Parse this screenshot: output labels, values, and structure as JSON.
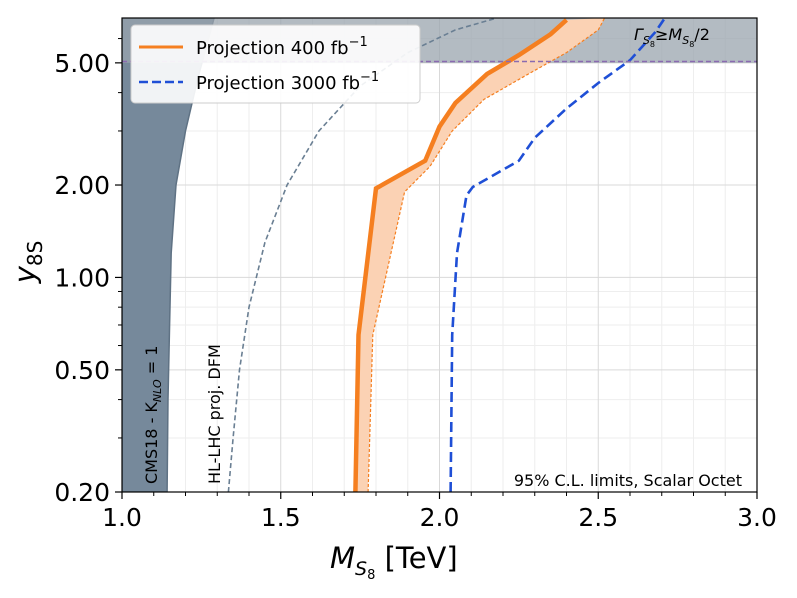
{
  "chart_data": {
    "type": "line",
    "x": {
      "label": "M",
      "label_sub": "S",
      "label_subsub": "8",
      "label_unit": " [TeV]",
      "lim": [
        1.0,
        3.0
      ],
      "ticks": [
        "1.0",
        "1.5",
        "2.0",
        "2.5",
        "3.0"
      ],
      "tick_values": [
        1.0,
        1.5,
        2.0,
        2.5,
        3.0
      ],
      "minor_ticks": [
        1.1,
        1.2,
        1.3,
        1.4,
        1.6,
        1.7,
        1.8,
        1.9,
        2.1,
        2.2,
        2.3,
        2.4,
        2.6,
        2.7,
        2.8,
        2.9
      ]
    },
    "y": {
      "label": "y",
      "label_sub": "8S",
      "scale": "log",
      "lim": [
        0.2,
        7.0
      ],
      "ticks": [
        "0.20",
        "0.50",
        "1.00",
        "2.00",
        "5.00"
      ],
      "tick_values": [
        0.2,
        0.5,
        1.0,
        2.0,
        5.0
      ],
      "minor_ticks": [
        0.3,
        0.4,
        0.6,
        0.7,
        0.8,
        0.9,
        3,
        4,
        6
      ]
    },
    "grid": true,
    "legend": {
      "placement": "top-left",
      "entries": [
        {
          "label_main": "Projection 400 fb",
          "label_sup": "−1",
          "color": "#f57f20",
          "style": "solid"
        },
        {
          "label_main": "Projection 3000 fb",
          "label_sup": "−1",
          "color": "#1f4fd6",
          "style": "dashed"
        }
      ]
    },
    "regions": [
      {
        "name": "CMS18 excluded",
        "fill": "#76899b",
        "boundary": [
          [
            1.0,
            7.0
          ],
          [
            1.29,
            7.0
          ],
          [
            1.24,
            4.5
          ],
          [
            1.2,
            3.0
          ],
          [
            1.17,
            2.0
          ],
          [
            1.155,
            1.2
          ],
          [
            1.15,
            0.7
          ],
          [
            1.145,
            0.4
          ],
          [
            1.142,
            0.2
          ]
        ]
      },
      {
        "name": "width band",
        "fill": "#9aa4ad",
        "y_from": 5.0,
        "y_to": 7.0
      }
    ],
    "series": [
      {
        "name": "Projection 400 fb−1",
        "color": "#f57f20",
        "style": "solid",
        "band_color": "#fbd2b4",
        "lower": [
          [
            1.735,
            0.2
          ],
          [
            1.745,
            0.65
          ],
          [
            1.8,
            1.95
          ],
          [
            1.955,
            2.4
          ],
          [
            2.0,
            3.1
          ],
          [
            2.05,
            3.7
          ],
          [
            2.15,
            4.6
          ],
          [
            2.25,
            5.3
          ],
          [
            2.35,
            6.2
          ],
          [
            2.4,
            6.9
          ]
        ],
        "upper": [
          [
            1.775,
            0.2
          ],
          [
            1.79,
            0.65
          ],
          [
            1.89,
            1.9
          ],
          [
            1.97,
            2.3
          ],
          [
            2.04,
            3.0
          ],
          [
            2.14,
            3.8
          ],
          [
            2.28,
            4.6
          ],
          [
            2.4,
            5.4
          ],
          [
            2.5,
            6.4
          ],
          [
            2.52,
            7.0
          ]
        ]
      },
      {
        "name": "Projection 3000 fb−1",
        "color": "#1f4fd6",
        "style": "dashed",
        "points": [
          [
            2.035,
            0.2
          ],
          [
            2.04,
            0.65
          ],
          [
            2.055,
            1.2
          ],
          [
            2.085,
            1.85
          ],
          [
            2.105,
            1.97
          ],
          [
            2.25,
            2.4
          ],
          [
            2.3,
            2.85
          ],
          [
            2.4,
            3.55
          ],
          [
            2.5,
            4.3
          ],
          [
            2.6,
            5.1
          ],
          [
            2.68,
            6.3
          ],
          [
            2.71,
            7.0
          ]
        ]
      },
      {
        "name": "HL-LHC proj. DFM",
        "color": "#6a7f93",
        "style": "dashed",
        "points": [
          [
            1.335,
            0.2
          ],
          [
            1.35,
            0.3
          ],
          [
            1.37,
            0.5
          ],
          [
            1.4,
            0.8
          ],
          [
            1.45,
            1.3
          ],
          [
            1.52,
            2.0
          ],
          [
            1.62,
            3.0
          ],
          [
            1.75,
            4.2
          ],
          [
            1.9,
            5.4
          ],
          [
            2.05,
            6.4
          ],
          [
            2.18,
            7.0
          ]
        ]
      },
      {
        "name": "width limit line",
        "color": "#8a6ab0",
        "style": "dashed",
        "points": [
          [
            1.0,
            5.05
          ],
          [
            3.0,
            5.05
          ]
        ]
      }
    ],
    "annotations": {
      "width_main": "Γ",
      "width_sub1": "S",
      "width_subsub1": "8",
      "width_rel": "≥M",
      "width_sub2": "S",
      "width_subsub2": "8",
      "width_tail": "/2",
      "cms_main": "CMS18 - K",
      "cms_sub": "NLO",
      "cms_tail": " = 1",
      "dfm": "HL-LHC proj. DFM",
      "cl": "95% C.L. limits, Scalar Octet"
    }
  }
}
